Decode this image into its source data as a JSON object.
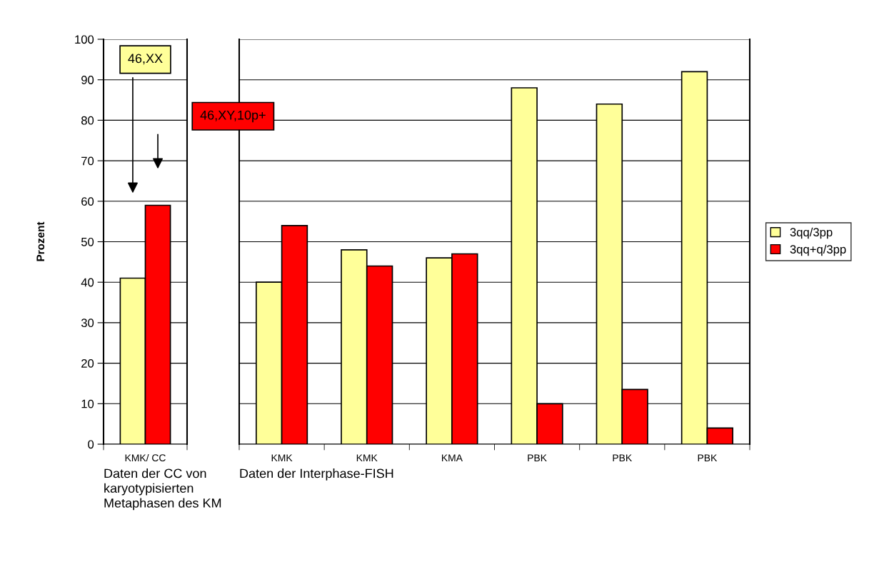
{
  "chart_data": [
    {
      "type": "bar",
      "ylabel": "Prozent",
      "xlabel": "Daten der CC von\nkaryotypisierten\nMetaphasen des KM",
      "categories": [
        "KMK/ CC"
      ],
      "ylim": [
        0,
        100
      ],
      "yticks": [
        0,
        10,
        20,
        30,
        40,
        50,
        60,
        70,
        80,
        90,
        100
      ],
      "grid": "y",
      "series": [
        {
          "color": "#ffff99",
          "values": [
            41
          ]
        },
        {
          "color": "#ff0000",
          "values": [
            59
          ]
        }
      ],
      "annotations": [
        "46,XX",
        "46,XY,10p+"
      ]
    },
    {
      "type": "bar",
      "xlabel": "Daten der Interphase-FISH",
      "categories": [
        "KMK",
        "KMK",
        "KMA",
        "PBK",
        "PBK",
        "PBK"
      ],
      "ylim": [
        0,
        100
      ],
      "yticks": [
        0,
        10,
        20,
        30,
        40,
        50,
        60,
        70,
        80,
        90,
        100
      ],
      "tick_labels": "x",
      "grid": "y",
      "legend": "right",
      "series": [
        {
          "name": "3qq/3pp",
          "color": "#ffff99",
          "values": [
            40,
            48,
            46,
            88,
            84,
            92
          ]
        },
        {
          "name": "3qq+q/3pp",
          "color": "#ff0000",
          "values": [
            54,
            44,
            47,
            10,
            13.5,
            4
          ]
        }
      ]
    }
  ]
}
